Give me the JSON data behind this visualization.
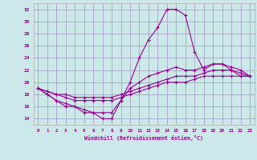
{
  "xlabel": "Windchill (Refroidissement éolien,°C)",
  "xlim": [
    -0.5,
    23.5
  ],
  "ylim": [
    13,
    33
  ],
  "yticks": [
    14,
    16,
    18,
    20,
    22,
    24,
    26,
    28,
    30,
    32
  ],
  "xticks": [
    0,
    1,
    2,
    3,
    4,
    5,
    6,
    7,
    8,
    9,
    10,
    11,
    12,
    13,
    14,
    15,
    16,
    17,
    18,
    19,
    20,
    21,
    22,
    23
  ],
  "bg_color": "#cce8e8",
  "line_color": "#990099",
  "grid_color": "#9999bb",
  "series": [
    {
      "x": [
        0,
        1,
        2,
        3,
        4,
        5,
        6,
        7,
        8,
        9,
        10,
        11,
        12,
        13,
        14,
        15,
        16,
        17,
        18,
        19,
        20,
        21,
        22,
        23
      ],
      "y": [
        19,
        18,
        17,
        16,
        16,
        15,
        15,
        14,
        14,
        17,
        20,
        24,
        27,
        29,
        32,
        32,
        31,
        25,
        22,
        23,
        23,
        22,
        21,
        21
      ]
    },
    {
      "x": [
        0,
        1,
        2,
        3,
        4,
        5,
        6,
        7,
        8,
        9,
        10,
        11,
        12,
        13,
        14,
        15,
        16,
        17,
        18,
        19,
        20,
        21,
        22,
        23
      ],
      "y": [
        19,
        18,
        17,
        16.5,
        16,
        15.5,
        15,
        15,
        15,
        17,
        19,
        20,
        21,
        21.5,
        22,
        22.5,
        22,
        22,
        22.5,
        23,
        23,
        22.5,
        22,
        21
      ]
    },
    {
      "x": [
        0,
        1,
        2,
        3,
        4,
        5,
        6,
        7,
        8,
        9,
        10,
        11,
        12,
        13,
        14,
        15,
        16,
        17,
        18,
        19,
        20,
        21,
        22,
        23
      ],
      "y": [
        19,
        18.5,
        18,
        17.5,
        17,
        17,
        17,
        17,
        17,
        17.5,
        18,
        18.5,
        19,
        19.5,
        20,
        20,
        20,
        20.5,
        21,
        21,
        21,
        21,
        21,
        21
      ]
    },
    {
      "x": [
        0,
        1,
        2,
        3,
        4,
        5,
        6,
        7,
        8,
        9,
        10,
        11,
        12,
        13,
        14,
        15,
        16,
        17,
        18,
        19,
        20,
        21,
        22,
        23
      ],
      "y": [
        19,
        18.5,
        18,
        18,
        17.5,
        17.5,
        17.5,
        17.5,
        17.5,
        18,
        18.5,
        19,
        19.5,
        20,
        20.5,
        21,
        21,
        21,
        21.5,
        22,
        22,
        22,
        21.5,
        21
      ]
    }
  ]
}
